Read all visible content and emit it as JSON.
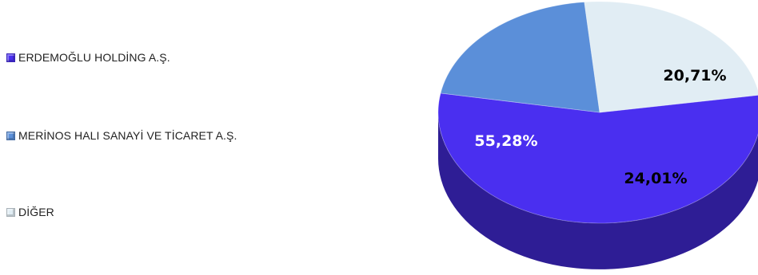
{
  "chart_data": {
    "type": "pie",
    "title": "",
    "legend_position": "left",
    "slices": [
      {
        "label": "ERDEMOĞLU HOLDİNG A.Ş.",
        "value": 55.28,
        "value_label": "55,28%",
        "color": "#4a2ff0",
        "label_color": "#ffffff"
      },
      {
        "label": "MERİNOS HALI SANAYİ VE TİCARET A.Ş.",
        "value": 20.71,
        "value_label": "20,71%",
        "color": "#5b8fd9",
        "label_color": "#000000"
      },
      {
        "label": "DİĞER",
        "value": 24.01,
        "value_label": "24,01%",
        "color": "#e1edf4",
        "label_color": "#000000"
      }
    ]
  }
}
